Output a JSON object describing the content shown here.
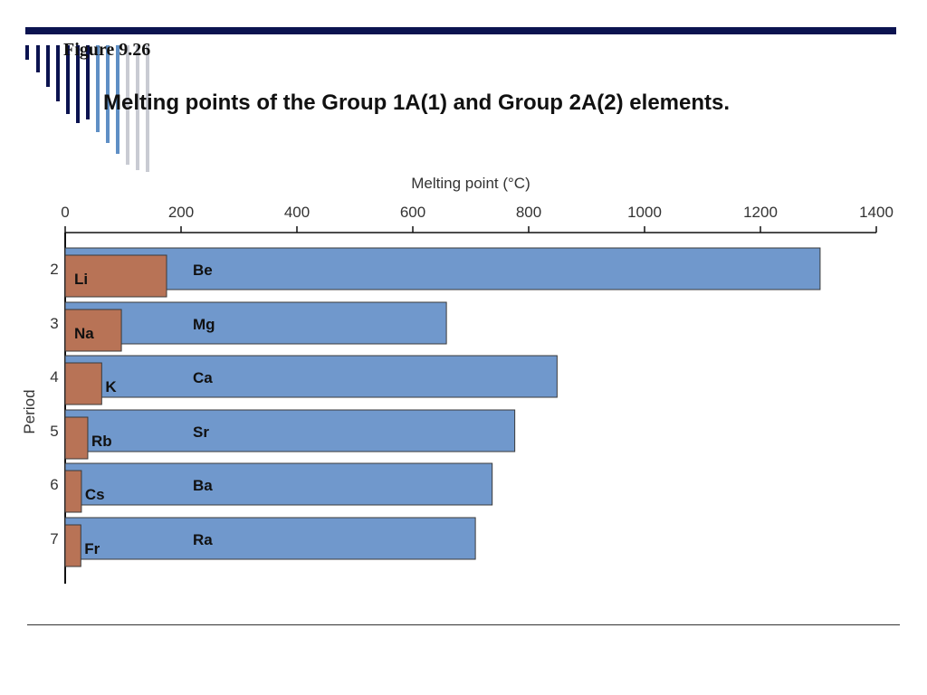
{
  "slide": {
    "figure_label": "Figure 9.26",
    "title": "Melting points of the Group 1A(1) and Group 2A(2) elements."
  },
  "colors": {
    "top_rule": "#0b1350",
    "deco_navy": "#0b1350",
    "deco_blue": "#5f8fc5",
    "deco_light": "#c9cbd3",
    "group1a": "#b87356",
    "group2a": "#7098cc",
    "bar_stroke": "#3a3a3a"
  },
  "chart_data": {
    "type": "bar",
    "orientation": "horizontal",
    "xlabel": "Melting point (°C)",
    "ylabel": "Period",
    "xlim": [
      0,
      1400
    ],
    "x_ticks": [
      0,
      200,
      400,
      600,
      800,
      1000,
      1200,
      1400
    ],
    "x_axis_position": "top",
    "grid": false,
    "categories": [
      "2",
      "3",
      "4",
      "5",
      "6",
      "7"
    ],
    "series": [
      {
        "group": "2A(2)",
        "labels": [
          "Be",
          "Mg",
          "Ca",
          "Sr",
          "Ba",
          "Ra"
        ],
        "values": [
          1303,
          658,
          849,
          776,
          737,
          708
        ]
      },
      {
        "group": "1A(1)",
        "labels": [
          "Li",
          "Na",
          "K",
          "Rb",
          "Cs",
          "Fr"
        ],
        "values": [
          175,
          97,
          63,
          39,
          28,
          27
        ]
      }
    ]
  }
}
